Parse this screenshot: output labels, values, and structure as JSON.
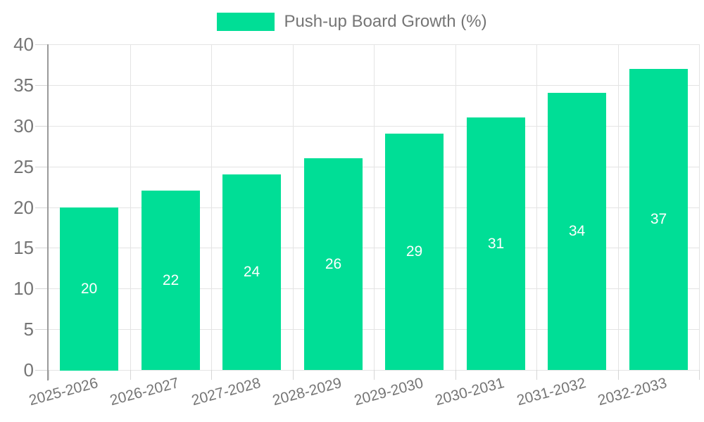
{
  "chart_data": {
    "type": "bar",
    "categories": [
      "2025-2026",
      "2026-2027",
      "2027-2028",
      "2028-2029",
      "2029-2030",
      "2030-2031",
      "2031-2032",
      "2032-2033"
    ],
    "series": [
      {
        "name": "Push-up Board Growth (%)",
        "values": [
          20,
          22,
          24,
          26,
          29,
          31,
          34,
          37
        ]
      }
    ],
    "title": "",
    "xlabel": "",
    "ylabel": "",
    "ylim": [
      0,
      40
    ],
    "yticks": [
      0,
      5,
      10,
      15,
      20,
      25,
      30,
      35,
      40
    ],
    "grid": true,
    "legend_position": "top-center",
    "x_label_rotation_deg": -15,
    "colors": {
      "bar": "#00DE96",
      "bar_value_label": "#ffffff",
      "axis_text": "#757575",
      "grid_line": "#e4e4e4",
      "tick_line": "#d6d6d6",
      "axis_line": "#9a9a9a",
      "background": "#ffffff"
    }
  }
}
